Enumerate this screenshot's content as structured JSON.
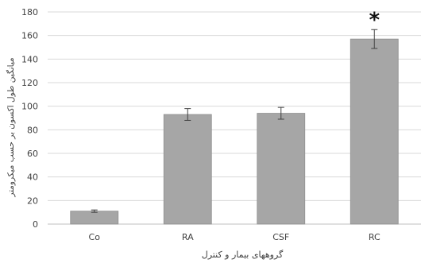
{
  "chart_data": {
    "type": "bar",
    "categories": [
      "Co",
      "RA",
      "CSF",
      "RC"
    ],
    "values": [
      11,
      93,
      94,
      157
    ],
    "error": [
      1,
      5,
      5,
      8
    ],
    "annotations": [
      "",
      "",
      "",
      "*"
    ],
    "xlabel": "گروههای بیمار و کنترل",
    "ylabel": "میانگین طول اکسون بر حسب میکرومتر",
    "ylim": [
      0,
      180
    ],
    "yticks": [
      0,
      20,
      40,
      60,
      80,
      100,
      120,
      140,
      160,
      180
    ],
    "grid": true,
    "colors": {
      "bar": "#a6a6a6",
      "bar_edge": "#8f8f8f",
      "grid": "#d9d9d9",
      "text": "#404040",
      "axis": "#bfbfbf",
      "error": "#404040"
    }
  }
}
